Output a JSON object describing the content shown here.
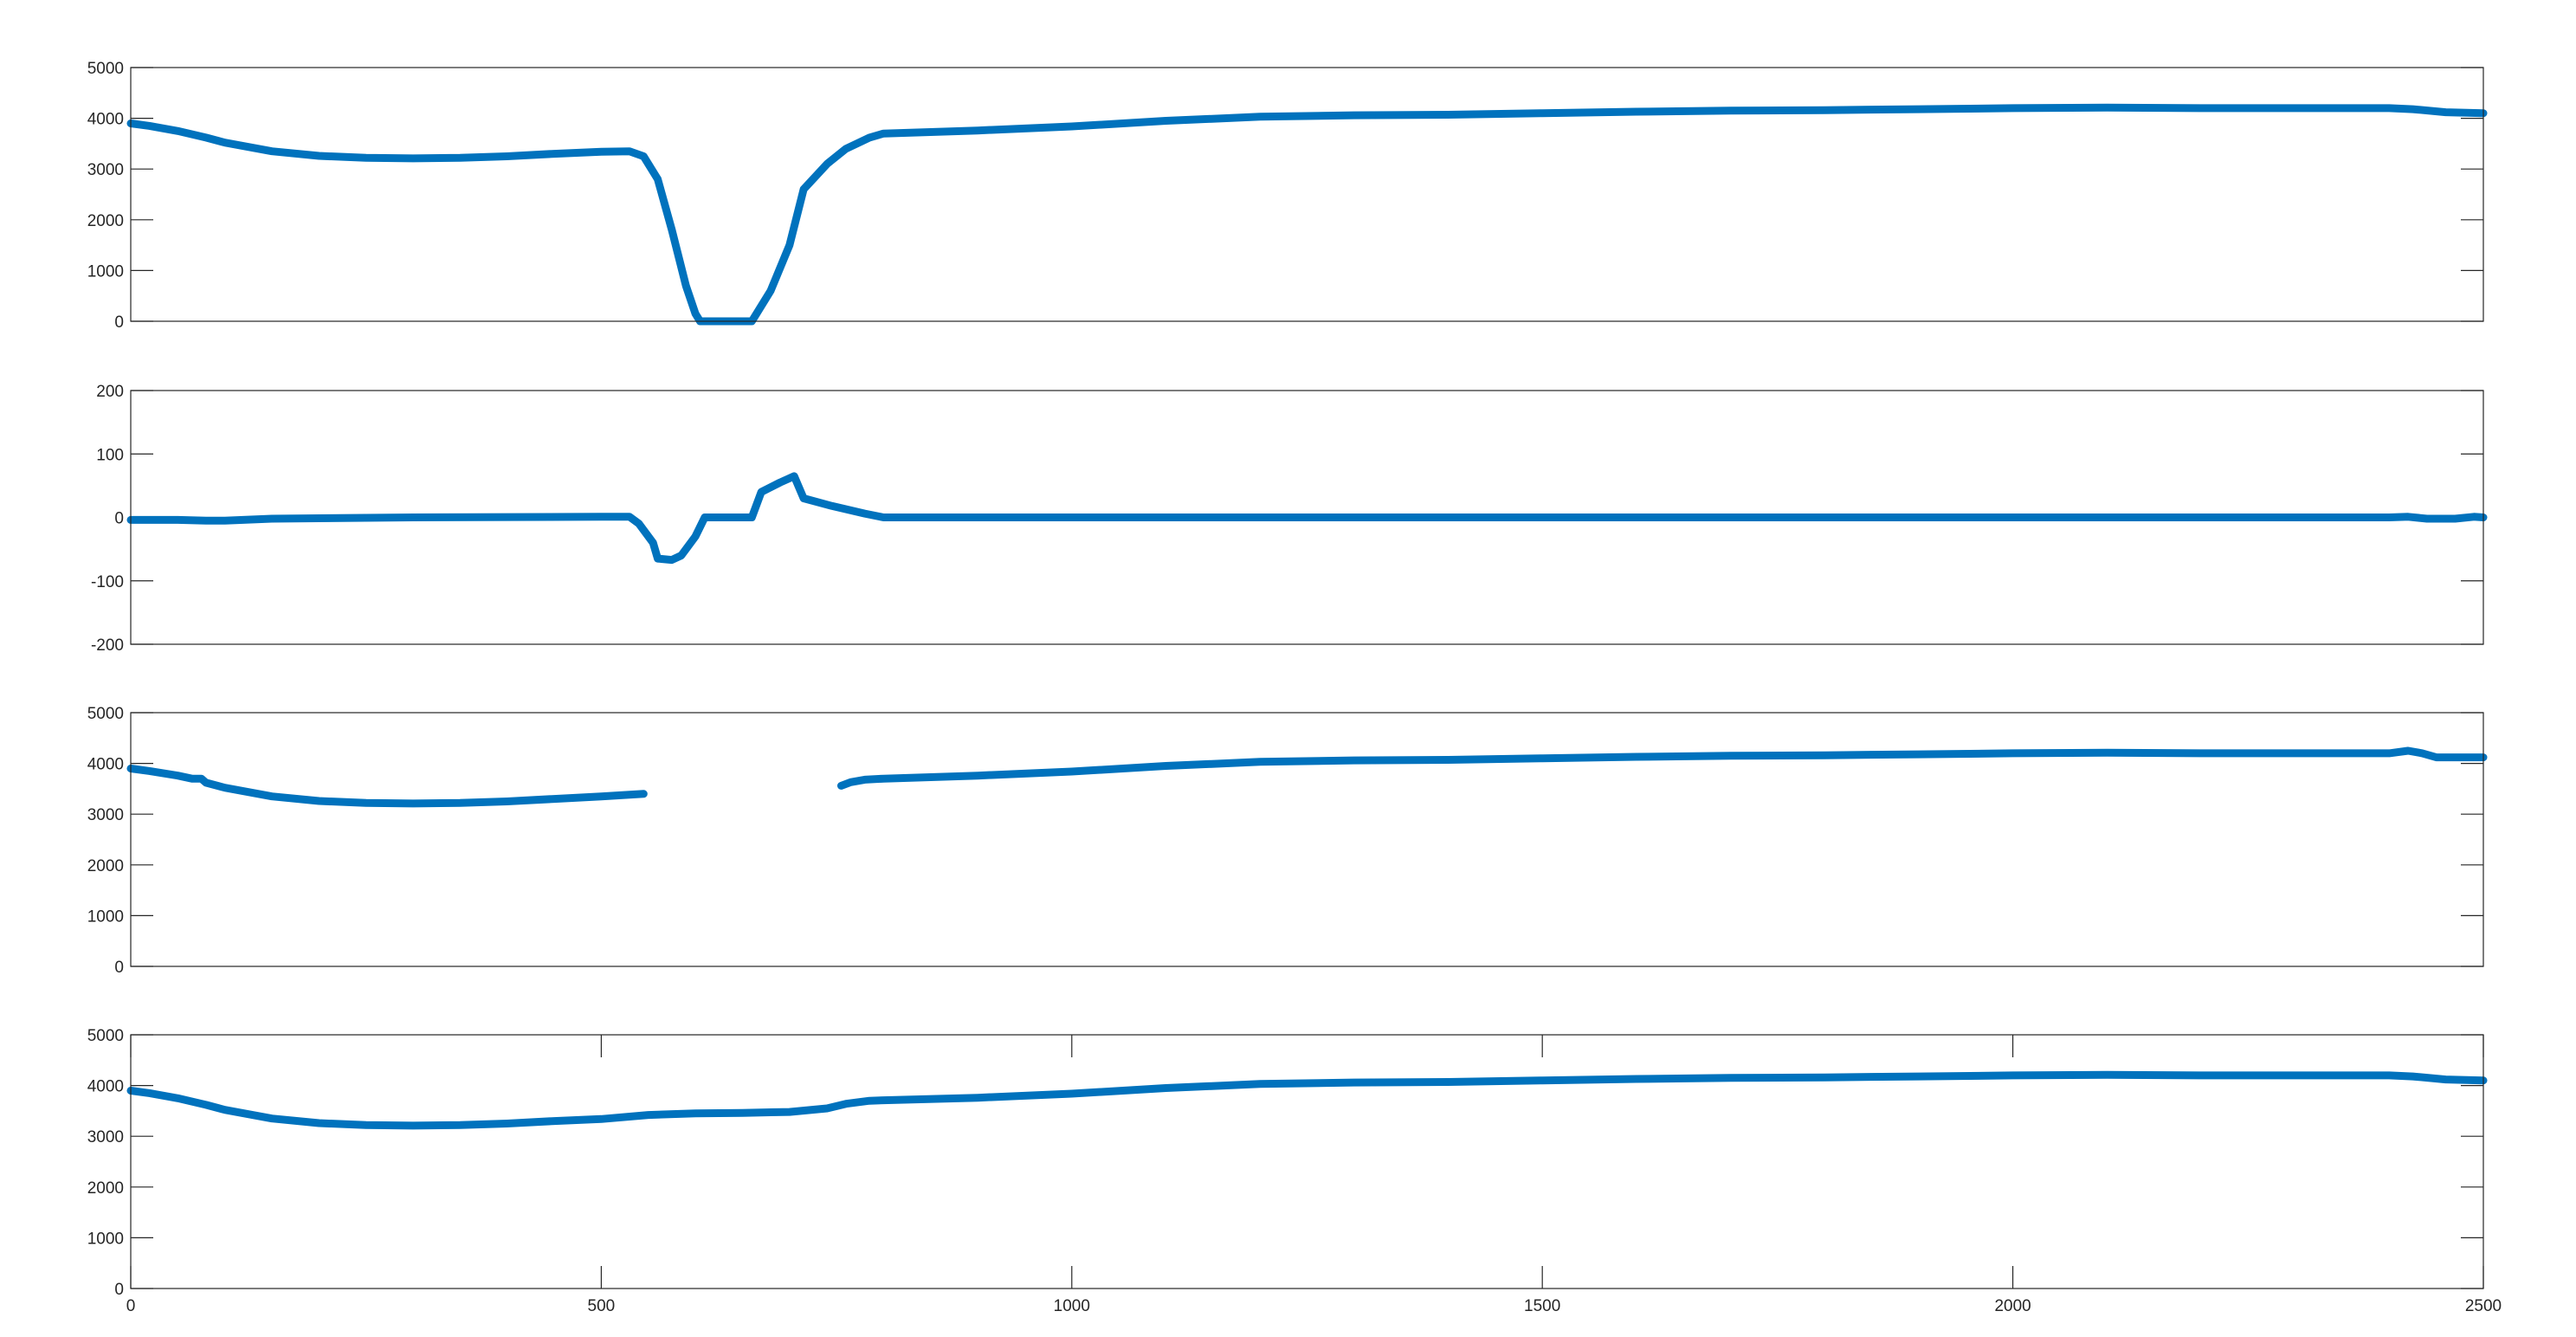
{
  "chart_data": [
    {
      "type": "line",
      "xlim": [
        0,
        2500
      ],
      "ylim": [
        0,
        5000
      ],
      "yticks": [
        0,
        1000,
        2000,
        3000,
        4000,
        5000
      ],
      "xticks": [],
      "xtick_labels_visible": false,
      "grid": false,
      "series": [
        {
          "color": "#0072BD",
          "x": [
            0,
            20,
            50,
            80,
            100,
            150,
            200,
            250,
            300,
            350,
            400,
            450,
            500,
            530,
            545,
            560,
            575,
            590,
            600,
            605,
            660,
            680,
            700,
            715,
            740,
            760,
            785,
            800,
            900,
            1000,
            1100,
            1200,
            1300,
            1400,
            1500,
            1600,
            1700,
            1800,
            1900,
            2000,
            2100,
            2200,
            2300,
            2400,
            2425,
            2460,
            2500
          ],
          "y": [
            3900,
            3850,
            3750,
            3620,
            3520,
            3350,
            3260,
            3220,
            3210,
            3220,
            3250,
            3300,
            3340,
            3350,
            3250,
            2800,
            1800,
            700,
            150,
            0,
            0,
            600,
            1500,
            2600,
            3100,
            3400,
            3620,
            3700,
            3760,
            3840,
            3950,
            4030,
            4060,
            4070,
            4100,
            4130,
            4150,
            4160,
            4180,
            4200,
            4210,
            4200,
            4200,
            4200,
            4180,
            4120,
            4100
          ]
        }
      ]
    },
    {
      "type": "line",
      "xlim": [
        0,
        2500
      ],
      "ylim": [
        -200,
        200
      ],
      "yticks": [
        -200,
        -100,
        0,
        100,
        200
      ],
      "xticks": [],
      "xtick_labels_visible": false,
      "grid": false,
      "series": [
        {
          "color": "#0072BD",
          "x": [
            0,
            50,
            80,
            100,
            150,
            300,
            500,
            530,
            540,
            555,
            560,
            575,
            585,
            600,
            610,
            660,
            670,
            690,
            705,
            715,
            745,
            780,
            800,
            1000,
            1500,
            2000,
            2400,
            2420,
            2440,
            2470,
            2490,
            2500
          ],
          "y": [
            -4,
            -4,
            -5,
            -5,
            -2,
            0,
            1,
            1,
            -10,
            -40,
            -65,
            -67,
            -60,
            -30,
            0,
            0,
            40,
            55,
            65,
            30,
            18,
            6,
            0,
            0,
            0,
            0,
            0,
            1,
            -2,
            -2,
            1,
            0
          ]
        }
      ]
    },
    {
      "type": "line",
      "xlim": [
        0,
        2500
      ],
      "ylim": [
        0,
        5000
      ],
      "yticks": [
        0,
        1000,
        2000,
        3000,
        4000,
        5000
      ],
      "xticks": [],
      "xtick_labels_visible": false,
      "grid": false,
      "series": [
        {
          "color": "#0072BD",
          "segments": [
            {
              "x": [
                0,
                20,
                50,
                65,
                75,
                80,
                100,
                150,
                200,
                250,
                300,
                350,
                400,
                450,
                500,
                545
              ],
              "y": [
                3900,
                3850,
                3760,
                3700,
                3700,
                3620,
                3520,
                3350,
                3260,
                3220,
                3210,
                3220,
                3250,
                3300,
                3350,
                3400
              ]
            },
            {
              "x": [
                755,
                765,
                780,
                800,
                900,
                1000,
                1100,
                1200,
                1300,
                1400,
                1500,
                1600,
                1700,
                1800,
                1900,
                2000,
                2100,
                2200,
                2300,
                2400,
                2420,
                2435,
                2450,
                2500
              ],
              "y": [
                3560,
                3630,
                3680,
                3700,
                3760,
                3840,
                3950,
                4030,
                4060,
                4070,
                4100,
                4130,
                4150,
                4160,
                4180,
                4200,
                4210,
                4200,
                4200,
                4200,
                4250,
                4200,
                4120,
                4120
              ]
            }
          ]
        }
      ]
    },
    {
      "type": "line",
      "xlim": [
        0,
        2500
      ],
      "ylim": [
        0,
        5000
      ],
      "yticks": [
        0,
        1000,
        2000,
        3000,
        4000,
        5000
      ],
      "xticks": [
        0,
        500,
        1000,
        1500,
        2000,
        2500
      ],
      "xtick_labels_visible": true,
      "grid": false,
      "series": [
        {
          "color": "#0072BD",
          "x": [
            0,
            20,
            50,
            80,
            100,
            150,
            200,
            250,
            300,
            350,
            400,
            450,
            500,
            550,
            600,
            650,
            700,
            740,
            760,
            785,
            800,
            900,
            1000,
            1100,
            1200,
            1300,
            1400,
            1500,
            1600,
            1700,
            1800,
            1900,
            2000,
            2100,
            2200,
            2300,
            2400,
            2425,
            2460,
            2500
          ],
          "y": [
            3900,
            3850,
            3750,
            3620,
            3520,
            3350,
            3260,
            3220,
            3210,
            3220,
            3250,
            3300,
            3340,
            3420,
            3450,
            3460,
            3480,
            3550,
            3640,
            3700,
            3710,
            3760,
            3840,
            3950,
            4030,
            4060,
            4070,
            4100,
            4130,
            4150,
            4160,
            4180,
            4200,
            4210,
            4200,
            4200,
            4200,
            4180,
            4120,
            4100
          ]
        }
      ]
    }
  ]
}
